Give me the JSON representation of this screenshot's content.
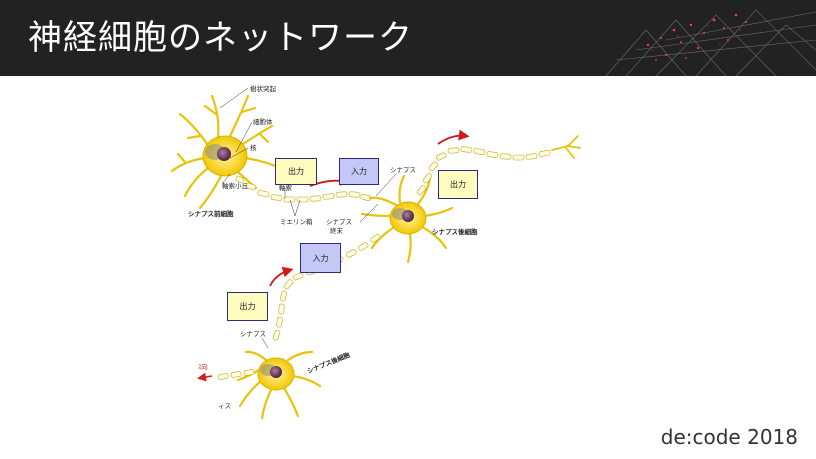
{
  "slide": {
    "title": "神経細胞のネットワーク",
    "footer": "de:code 2018"
  },
  "boxes": {
    "out1": "出力",
    "in1": "入力",
    "out2": "出力",
    "in2": "入力",
    "out3": "出力"
  },
  "labels": {
    "dendrite": "樹状突起",
    "cell_body": "細胞体",
    "nucleus": "核",
    "axon_hillock": "軸索小丘",
    "axon": "軸索",
    "myelin": "ミエリン鞘",
    "presynaptic": "シナプス前細胞",
    "synapse1": "シナプス",
    "synaptic_terminal_1": "シナプス",
    "synaptic_terminal_2": "終末",
    "postsynaptic1": "シナプス後細胞",
    "synapse2": "シナプス",
    "postsynaptic2": "シナプス後細胞",
    "partial1": "ｽ向",
    "partial2": "ィス"
  },
  "colors": {
    "header_bg": "#222222",
    "neuron_yellow": "#f7d415",
    "output_box": "#fffcc0",
    "input_box": "#c4c8f6",
    "arrow_red": "#d21a1a"
  }
}
